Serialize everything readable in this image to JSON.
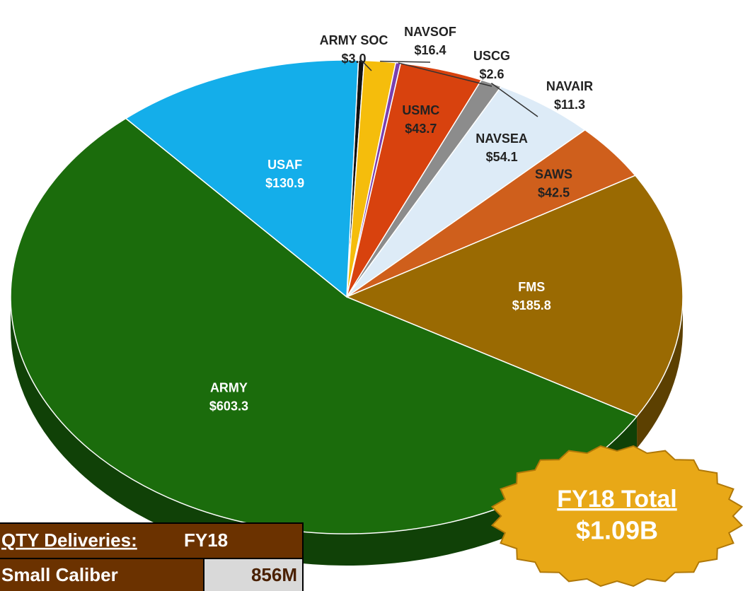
{
  "chart_data": {
    "type": "pie",
    "categories": [
      "ARMY SOC",
      "NAVSOF",
      "USCG",
      "USMC",
      "NAVAIR",
      "NAVSEA",
      "SAWS",
      "FMS",
      "ARMY",
      "USAF"
    ],
    "values": [
      3.0,
      16.4,
      2.6,
      43.7,
      11.3,
      54.1,
      42.5,
      185.8,
      603.3,
      130.9
    ],
    "value_labels": [
      "$3.0",
      "$16.4",
      "$2.6",
      "$43.7",
      "$11.3",
      "$54.1",
      "$42.5",
      "$185.8",
      "$603.3",
      "$130.9"
    ],
    "colors": [
      "#111111",
      "#f5bd0c",
      "#7a3fb0",
      "#d8420e",
      "#8c8c8c",
      "#ddebf7",
      "#cf5f1c",
      "#9a6a02",
      "#1b6c0c",
      "#14aeea"
    ]
  },
  "badge": {
    "title": "FY18 Total",
    "value": "$1.09B"
  },
  "table": {
    "header": [
      "QTY Deliveries:",
      "FY18"
    ],
    "rows": [
      [
        "Small Caliber",
        "856M"
      ]
    ]
  }
}
